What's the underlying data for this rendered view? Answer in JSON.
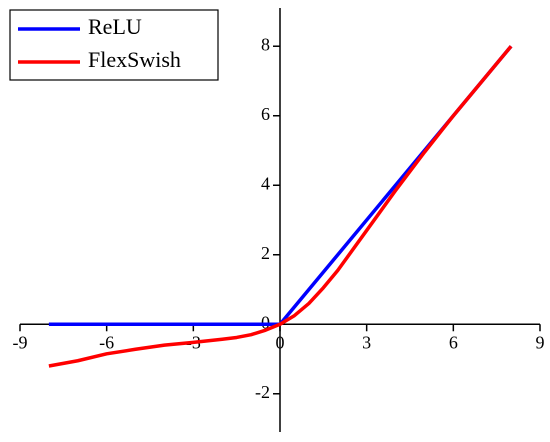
{
  "chart_data": {
    "type": "line",
    "series": [
      {
        "name": "ReLU",
        "color": "#0000ff",
        "x": [
          -8,
          0,
          8
        ],
        "values": [
          0,
          0,
          8
        ]
      },
      {
        "name": "FlexSwish",
        "color": "#ff0000",
        "x": [
          -8,
          -7,
          -6,
          -5,
          -4,
          -3,
          -2,
          -1.5,
          -1,
          -0.5,
          0,
          0.5,
          1,
          1.5,
          2,
          3,
          4,
          5,
          6,
          7,
          8
        ],
        "values": [
          -1.2,
          -1.05,
          -0.85,
          -0.72,
          -0.6,
          -0.52,
          -0.43,
          -0.38,
          -0.3,
          -0.17,
          0,
          0.25,
          0.6,
          1.05,
          1.55,
          2.7,
          3.85,
          4.95,
          6,
          7,
          8
        ]
      }
    ],
    "xlim": [
      -9,
      9
    ],
    "xticks": [
      -9,
      -6,
      -3,
      0,
      3,
      6,
      9
    ],
    "ylim": [
      -3.1,
      9.1
    ],
    "yticks": [
      -2,
      0,
      2,
      4,
      6,
      8
    ],
    "legend": "upper left"
  }
}
